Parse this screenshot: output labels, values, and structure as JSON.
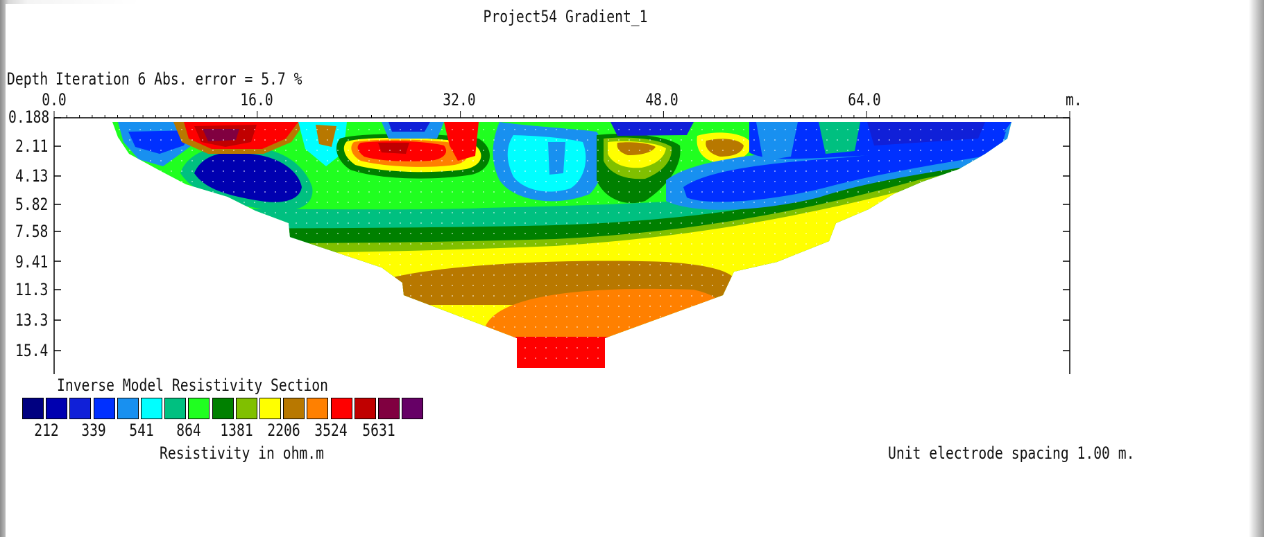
{
  "chart_data": {
    "type": "heatmap",
    "title": "Project54 Gradient_1",
    "subtitle": "Iteration 6 Abs. error = 5.7 %",
    "ylabel": "Depth",
    "xunit": "m.",
    "x_ticks": [
      "0.0",
      "16.0",
      "32.0",
      "48.0",
      "64.0"
    ],
    "xlim": [
      0,
      80
    ],
    "depth_ticks": [
      "0.188",
      "2.11",
      "4.13",
      "5.82",
      "7.58",
      "9.41",
      "11.3",
      "13.3",
      "15.4"
    ],
    "legend_title": "Inverse Model Resistivity Section",
    "legend_colors": [
      "#000080",
      "#0000b0",
      "#1020d8",
      "#0030ff",
      "#1890f0",
      "#00ffff",
      "#00c080",
      "#20ff20",
      "#008000",
      "#80c000",
      "#ffff00",
      "#b87800",
      "#ff8000",
      "#ff0000",
      "#c00000",
      "#800040",
      "#660066"
    ],
    "legend_values": [
      "212",
      "339",
      "541",
      "864",
      "1381",
      "2206",
      "3524",
      "5631"
    ],
    "colorbar_label": "Resistivity in ohm.m",
    "footer": "Unit electrode spacing 1.00 m."
  }
}
